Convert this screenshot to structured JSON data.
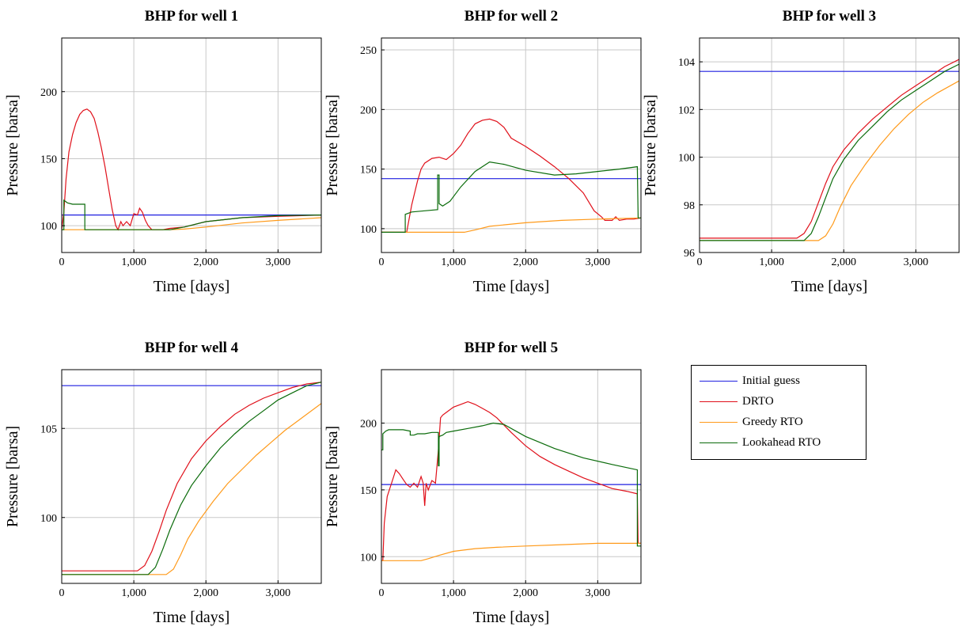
{
  "colors": {
    "initial_guess": "#1f1fe0",
    "drto": "#e0101a",
    "greedy": "#ff9a1a",
    "lookahead": "#0a6b0a",
    "grid": "#c8c8c8"
  },
  "legend": [
    {
      "name": "Initial guess",
      "color_key": "initial_guess"
    },
    {
      "name": "DRTO",
      "color_key": "drto"
    },
    {
      "name": "Greedy RTO",
      "color_key": "greedy"
    },
    {
      "name": "Lookahead RTO",
      "color_key": "lookahead"
    }
  ],
  "chart_data": [
    {
      "type": "line",
      "title": "BHP for well 1",
      "xlabel": "Time [days]",
      "ylabel": "Pressure [barsa]",
      "xlim": [
        0,
        3600
      ],
      "ylim": [
        80,
        240
      ],
      "xticks": [
        0,
        1000,
        2000,
        3000
      ],
      "xtick_labels": [
        "0",
        "1,000",
        "2,000",
        "3,000"
      ],
      "yticks": [
        100,
        150,
        200
      ],
      "ytick_labels": [
        "100",
        "150",
        "200"
      ],
      "grid": true,
      "series": [
        {
          "name": "Initial guess",
          "color_key": "initial_guess",
          "x": [
            0,
            3600
          ],
          "y": [
            108,
            108
          ]
        },
        {
          "name": "DRTO",
          "color_key": "drto",
          "x": [
            0,
            30,
            60,
            100,
            150,
            200,
            250,
            300,
            350,
            400,
            450,
            500,
            550,
            600,
            650,
            700,
            750,
            780,
            820,
            850,
            900,
            950,
            1000,
            1050,
            1080,
            1120,
            1160,
            1200,
            1250,
            1300,
            1400,
            1500,
            1700,
            2000,
            2500,
            3000,
            3600
          ],
          "y": [
            97,
            110,
            135,
            155,
            168,
            177,
            183,
            186,
            187,
            185,
            180,
            170,
            158,
            144,
            128,
            112,
            100,
            97,
            103,
            100,
            103,
            100,
            109,
            108,
            113,
            110,
            104,
            100,
            97,
            97,
            97,
            98,
            99,
            103,
            106,
            107,
            108
          ]
        },
        {
          "name": "Greedy RTO",
          "color_key": "greedy",
          "x": [
            0,
            1500,
            1700,
            2000,
            2500,
            3000,
            3600
          ],
          "y": [
            97,
            97,
            97.5,
            99,
            102,
            104,
            106
          ]
        },
        {
          "name": "Lookahead RTO",
          "color_key": "lookahead",
          "x": [
            0,
            30,
            30,
            80,
            150,
            320,
            320,
            1500,
            1700,
            2000,
            2500,
            3000,
            3600
          ],
          "y": [
            97,
            97,
            119,
            117,
            116,
            116,
            97,
            97,
            99,
            103,
            106,
            107.5,
            108
          ]
        }
      ]
    },
    {
      "type": "line",
      "title": "BHP for well 2",
      "xlabel": "Time [days]",
      "ylabel": "Pressure [barsa]",
      "xlim": [
        0,
        3600
      ],
      "ylim": [
        80,
        260
      ],
      "xticks": [
        0,
        1000,
        2000,
        3000
      ],
      "xtick_labels": [
        "0",
        "1,000",
        "2,000",
        "3,000"
      ],
      "yticks": [
        100,
        150,
        200,
        250
      ],
      "ytick_labels": [
        "100",
        "150",
        "200",
        "250"
      ],
      "grid": true,
      "series": [
        {
          "name": "Initial guess",
          "color_key": "initial_guess",
          "x": [
            0,
            3600
          ],
          "y": [
            142,
            142
          ]
        },
        {
          "name": "DRTO",
          "color_key": "drto",
          "x": [
            0,
            350,
            420,
            500,
            550,
            600,
            700,
            800,
            900,
            1000,
            1100,
            1200,
            1300,
            1400,
            1500,
            1600,
            1700,
            1800,
            2000,
            2200,
            2400,
            2600,
            2800,
            2950,
            3050,
            3100,
            3200,
            3250,
            3300,
            3400,
            3500,
            3600
          ],
          "y": [
            97,
            97,
            120,
            140,
            150,
            155,
            159,
            160,
            158,
            163,
            170,
            180,
            188,
            191,
            192,
            190,
            185,
            176,
            169,
            161,
            152,
            142,
            130,
            115,
            110,
            107,
            107,
            110,
            107,
            108,
            108,
            109
          ]
        },
        {
          "name": "Greedy RTO",
          "color_key": "greedy",
          "x": [
            0,
            1150,
            1300,
            1500,
            2000,
            2500,
            3000,
            3600
          ],
          "y": [
            97,
            97,
            99,
            102,
            105,
            107,
            108,
            109
          ]
        },
        {
          "name": "Lookahead RTO",
          "color_key": "lookahead",
          "x": [
            0,
            330,
            330,
            420,
            600,
            780,
            780,
            800,
            800,
            850,
            950,
            1100,
            1300,
            1500,
            1700,
            2000,
            2400,
            2700,
            3000,
            3300,
            3550,
            3560,
            3600
          ],
          "y": [
            97,
            97,
            112,
            114,
            115,
            116,
            145,
            145,
            121,
            119,
            123,
            135,
            148,
            156,
            154,
            149,
            145,
            146,
            148,
            150,
            152,
            109,
            109
          ]
        }
      ]
    },
    {
      "type": "line",
      "title": "BHP for well 3",
      "xlabel": "Time [days]",
      "ylabel": "Pressure [barsa]",
      "xlim": [
        0,
        3600
      ],
      "ylim": [
        96,
        105
      ],
      "xticks": [
        0,
        1000,
        2000,
        3000
      ],
      "xtick_labels": [
        "0",
        "1,000",
        "2,000",
        "3,000"
      ],
      "yticks": [
        96,
        98,
        100,
        102,
        104
      ],
      "ytick_labels": [
        "96",
        "98",
        "100",
        "102",
        "104"
      ],
      "grid": true,
      "series": [
        {
          "name": "Initial guess",
          "color_key": "initial_guess",
          "x": [
            0,
            3600
          ],
          "y": [
            103.6,
            103.6
          ]
        },
        {
          "name": "DRTO",
          "color_key": "drto",
          "x": [
            0,
            1350,
            1450,
            1550,
            1650,
            1750,
            1850,
            2000,
            2200,
            2400,
            2600,
            2800,
            3000,
            3200,
            3400,
            3600
          ],
          "y": [
            96.6,
            96.6,
            96.8,
            97.3,
            98.1,
            98.9,
            99.6,
            100.3,
            101.0,
            101.6,
            102.1,
            102.6,
            103.0,
            103.4,
            103.8,
            104.1
          ]
        },
        {
          "name": "Greedy RTO",
          "color_key": "greedy",
          "x": [
            0,
            1650,
            1750,
            1850,
            1950,
            2100,
            2300,
            2500,
            2700,
            2900,
            3100,
            3300,
            3600
          ],
          "y": [
            96.5,
            96.5,
            96.7,
            97.2,
            97.9,
            98.8,
            99.7,
            100.5,
            101.2,
            101.8,
            102.3,
            102.7,
            103.2
          ]
        },
        {
          "name": "Lookahead RTO",
          "color_key": "lookahead",
          "x": [
            0,
            1450,
            1550,
            1650,
            1750,
            1850,
            2000,
            2200,
            2400,
            2600,
            2800,
            3000,
            3200,
            3400,
            3600
          ],
          "y": [
            96.5,
            96.5,
            96.8,
            97.5,
            98.3,
            99.1,
            99.9,
            100.7,
            101.3,
            101.9,
            102.4,
            102.8,
            103.2,
            103.6,
            103.9
          ]
        }
      ]
    },
    {
      "type": "line",
      "title": "BHP for well 4",
      "xlabel": "Time [days]",
      "ylabel": "Pressure [barsa]",
      "xlim": [
        0,
        3600
      ],
      "ylim": [
        96.3,
        108.3
      ],
      "xticks": [
        0,
        1000,
        2000,
        3000
      ],
      "xtick_labels": [
        "0",
        "1,000",
        "2,000",
        "3,000"
      ],
      "yticks": [
        100,
        105
      ],
      "ytick_labels": [
        "100",
        "105"
      ],
      "grid": true,
      "series": [
        {
          "name": "Initial guess",
          "color_key": "initial_guess",
          "x": [
            0,
            3600
          ],
          "y": [
            107.4,
            107.4
          ]
        },
        {
          "name": "DRTO",
          "color_key": "drto",
          "x": [
            0,
            1050,
            1150,
            1250,
            1350,
            1450,
            1600,
            1800,
            2000,
            2200,
            2400,
            2600,
            2800,
            3000,
            3200,
            3400,
            3600
          ],
          "y": [
            97.0,
            97.0,
            97.3,
            98.1,
            99.2,
            100.4,
            101.9,
            103.3,
            104.3,
            105.1,
            105.8,
            106.3,
            106.7,
            107.0,
            107.3,
            107.5,
            107.6
          ]
        },
        {
          "name": "Greedy RTO",
          "color_key": "greedy",
          "x": [
            0,
            1450,
            1550,
            1650,
            1750,
            1900,
            2100,
            2300,
            2500,
            2700,
            2900,
            3100,
            3300,
            3600
          ],
          "y": [
            96.8,
            96.8,
            97.1,
            97.9,
            98.8,
            99.8,
            100.9,
            101.9,
            102.7,
            103.5,
            104.2,
            104.9,
            105.5,
            106.4
          ]
        },
        {
          "name": "Lookahead RTO",
          "color_key": "lookahead",
          "x": [
            0,
            1200,
            1300,
            1400,
            1500,
            1650,
            1800,
            2000,
            2200,
            2400,
            2600,
            2800,
            3000,
            3200,
            3400,
            3600
          ],
          "y": [
            96.8,
            96.8,
            97.2,
            98.2,
            99.3,
            100.7,
            101.8,
            102.9,
            103.9,
            104.7,
            105.4,
            106.0,
            106.6,
            107.0,
            107.4,
            107.6
          ]
        }
      ]
    },
    {
      "type": "line",
      "title": "BHP for well 5",
      "xlabel": "Time [days]",
      "ylabel": "Pressure [barsa]",
      "xlim": [
        0,
        3600
      ],
      "ylim": [
        80,
        240
      ],
      "xticks": [
        0,
        1000,
        2000,
        3000
      ],
      "xtick_labels": [
        "0",
        "1,000",
        "2,000",
        "3,000"
      ],
      "yticks": [
        100,
        150,
        200
      ],
      "ytick_labels": [
        "100",
        "150",
        "200"
      ],
      "grid": true,
      "series": [
        {
          "name": "Initial guess",
          "color_key": "initial_guess",
          "x": [
            0,
            3600
          ],
          "y": [
            154,
            154
          ]
        },
        {
          "name": "DRTO",
          "color_key": "drto",
          "x": [
            0,
            20,
            40,
            80,
            110,
            140,
            170,
            200,
            250,
            300,
            350,
            400,
            450,
            500,
            550,
            580,
            600,
            620,
            650,
            700,
            750,
            790,
            820,
            850,
            900,
            1000,
            1100,
            1200,
            1300,
            1400,
            1500,
            1600,
            1800,
            2000,
            2200,
            2400,
            2600,
            2800,
            3000,
            3200,
            3400,
            3550,
            3560,
            3600
          ],
          "y": [
            97,
            97,
            125,
            145,
            150,
            155,
            160,
            165,
            162,
            158,
            154,
            152,
            155,
            152,
            160,
            155,
            138,
            155,
            150,
            157,
            155,
            180,
            204,
            206,
            208,
            212,
            214,
            216,
            214,
            211,
            208,
            204,
            193,
            183,
            175,
            169,
            164,
            159,
            155,
            151,
            149,
            147,
            110,
            110
          ]
        },
        {
          "name": "Greedy RTO",
          "color_key": "greedy",
          "x": [
            0,
            550,
            650,
            800,
            1000,
            1300,
            1600,
            2000,
            2500,
            3000,
            3600
          ],
          "y": [
            97,
            97,
            98.5,
            101,
            104,
            106,
            107,
            108,
            109,
            110,
            110
          ]
        },
        {
          "name": "Lookahead RTO",
          "color_key": "lookahead",
          "x": [
            0,
            20,
            20,
            60,
            100,
            150,
            300,
            400,
            400,
            450,
            500,
            600,
            700,
            790,
            790,
            800,
            800,
            850,
            900,
            1000,
            1200,
            1400,
            1550,
            1700,
            2000,
            2400,
            2800,
            3200,
            3550,
            3550,
            3600
          ],
          "y": [
            180,
            180,
            192,
            194,
            195,
            195,
            195,
            194,
            191,
            191,
            192,
            192,
            193,
            193,
            168,
            168,
            190,
            191,
            193,
            194,
            196,
            198,
            200,
            199,
            190,
            181,
            174,
            169,
            165,
            108,
            108
          ]
        }
      ]
    }
  ]
}
